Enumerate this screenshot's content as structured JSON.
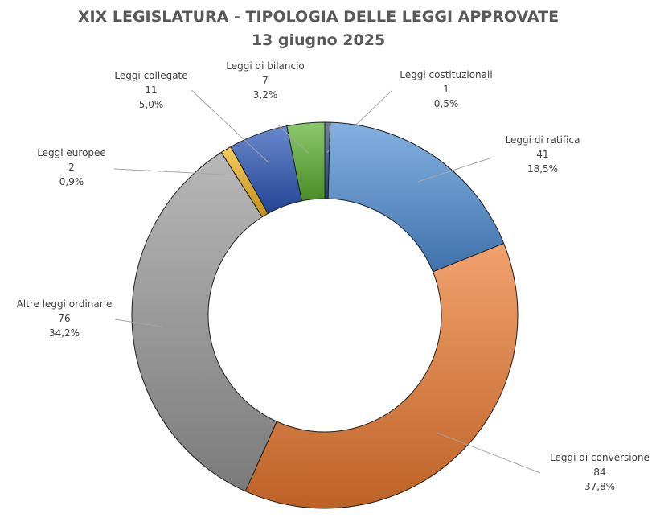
{
  "chart_data": {
    "type": "pie",
    "variant": "doughnut",
    "title": "XIX LEGISLATURA - TIPOLOGIA DELLE LEGGI APPROVATE",
    "subtitle": "13 giugno 2025",
    "slices": [
      {
        "name": "Leggi costituzionali",
        "value": 1,
        "percent": "0,5%",
        "color": "#2f4f7f"
      },
      {
        "name": "Leggi di ratifica",
        "value": 41,
        "percent": "18,5%",
        "color": "#4f8fd6"
      },
      {
        "name": "Leggi di conversione",
        "value": 84,
        "percent": "37,8%",
        "color": "#ec7a30"
      },
      {
        "name": "Altre leggi ordinarie",
        "value": 76,
        "percent": "34,2%",
        "color": "#9a9a9a"
      },
      {
        "name": "Leggi europee",
        "value": 2,
        "percent": "0,9%",
        "color": "#f2b51c"
      },
      {
        "name": "Leggi collegate",
        "value": 11,
        "percent": "5,0%",
        "color": "#2a55b8"
      },
      {
        "name": "Leggi di bilancio",
        "value": 7,
        "percent": "3,2%",
        "color": "#5bb030"
      }
    ],
    "legend": "none",
    "data_labels": "outside with leader lines"
  }
}
